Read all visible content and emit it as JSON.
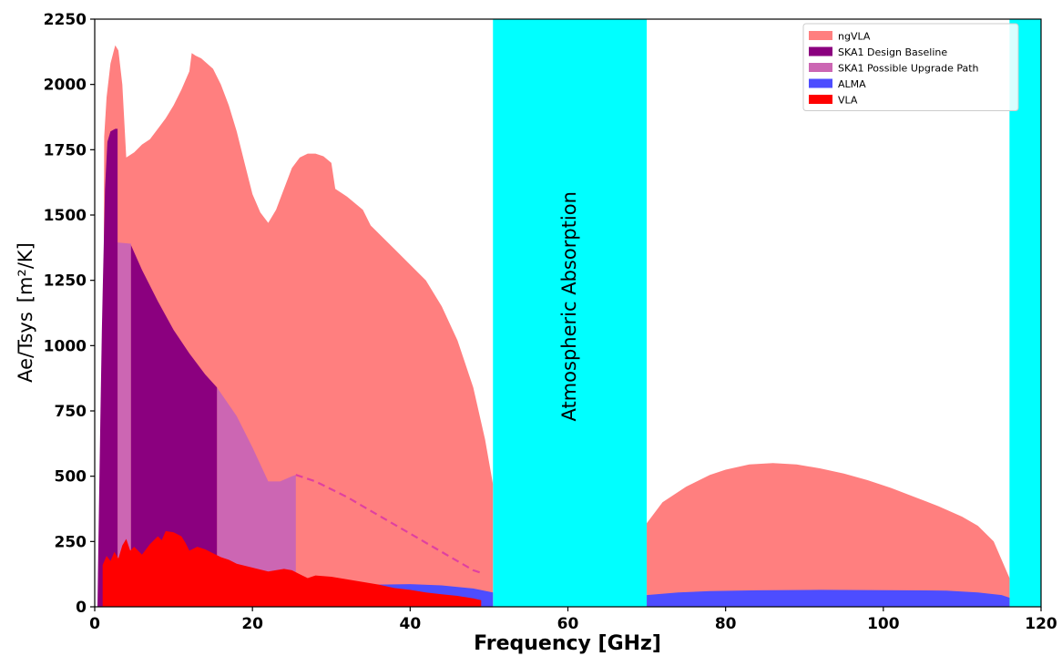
{
  "chart_data": {
    "type": "area",
    "title": "",
    "xlabel": "Frequency [GHz]",
    "ylabel": "Ae/Tsys",
    "ylabel_unit": "[m²/K]",
    "xlim": [
      0,
      120
    ],
    "ylim": [
      0,
      2250
    ],
    "x_ticks": [
      0,
      20,
      40,
      60,
      80,
      100,
      120
    ],
    "y_ticks": [
      0,
      250,
      500,
      750,
      1000,
      1250,
      1500,
      1750,
      2000,
      2250
    ],
    "grid": false,
    "legend_position": "top-right",
    "annotations": [
      {
        "text": "Atmospheric Absorption",
        "x": 61,
        "y": 1150,
        "rotation": -90
      }
    ],
    "bands": [
      {
        "name": "atmospheric-absorption",
        "x0": 50.5,
        "x1": 70,
        "color": "#00ffff"
      },
      {
        "name": "atmospheric-absorption-high",
        "x0": 116,
        "x1": 120,
        "color": "#00ffff"
      }
    ],
    "series": [
      {
        "name": "ngVLA",
        "color": "#ff7f7f",
        "segments": [
          [
            [
              1,
              0
            ],
            [
              1.2,
              1800
            ],
            [
              1.5,
              1950
            ],
            [
              2,
              2080
            ],
            [
              2.6,
              2150
            ],
            [
              3,
              2130
            ],
            [
              3.5,
              2000
            ],
            [
              4,
              1720
            ],
            [
              5,
              1740
            ],
            [
              6,
              1770
            ],
            [
              7,
              1790
            ],
            [
              8,
              1830
            ],
            [
              9,
              1870
            ],
            [
              10,
              1920
            ],
            [
              11,
              1980
            ],
            [
              12,
              2050
            ],
            [
              12.3,
              2120
            ],
            [
              12.8,
              2110
            ],
            [
              13.5,
              2100
            ],
            [
              15,
              2060
            ],
            [
              16,
              2000
            ],
            [
              17,
              1920
            ],
            [
              18,
              1820
            ],
            [
              19,
              1700
            ],
            [
              20,
              1580
            ],
            [
              21,
              1510
            ],
            [
              22,
              1470
            ],
            [
              23,
              1520
            ],
            [
              24,
              1600
            ],
            [
              25,
              1680
            ],
            [
              26,
              1720
            ],
            [
              27,
              1735
            ],
            [
              28,
              1735
            ],
            [
              29,
              1725
            ],
            [
              30,
              1700
            ],
            [
              30.5,
              1600
            ],
            [
              32,
              1570
            ],
            [
              34,
              1520
            ],
            [
              35,
              1460
            ],
            [
              36,
              1430
            ],
            [
              38,
              1370
            ],
            [
              40,
              1310
            ],
            [
              42,
              1250
            ],
            [
              44,
              1150
            ],
            [
              46,
              1020
            ],
            [
              48,
              840
            ],
            [
              49.5,
              640
            ],
            [
              50.5,
              470
            ],
            [
              50.5,
              0
            ]
          ],
          [
            [
              70,
              0
            ],
            [
              70,
              320
            ],
            [
              72,
              400
            ],
            [
              75,
              460
            ],
            [
              78,
              505
            ],
            [
              80,
              525
            ],
            [
              83,
              545
            ],
            [
              86,
              550
            ],
            [
              89,
              545
            ],
            [
              92,
              530
            ],
            [
              95,
              510
            ],
            [
              98,
              485
            ],
            [
              101,
              455
            ],
            [
              104,
              420
            ],
            [
              107,
              385
            ],
            [
              110,
              345
            ],
            [
              112,
              310
            ],
            [
              114,
              250
            ],
            [
              115,
              180
            ],
            [
              116,
              110
            ],
            [
              116,
              0
            ]
          ]
        ]
      },
      {
        "name": "SKA1 Possible Upgrade Path",
        "color": "#cc66b3",
        "segments": [
          [
            [
              2.9,
              0
            ],
            [
              2.9,
              1395
            ],
            [
              4.6,
              1390
            ],
            [
              4.6,
              0
            ]
          ],
          [
            [
              15.5,
              0
            ],
            [
              15.5,
              840
            ],
            [
              18,
              730
            ],
            [
              20,
              610
            ],
            [
              22,
              480
            ],
            [
              23.5,
              480
            ],
            [
              25,
              500
            ],
            [
              25.5,
              505
            ],
            [
              25.5,
              0
            ]
          ]
        ]
      },
      {
        "name": "SKA1 Design Baseline",
        "color": "#8b007f",
        "segments": [
          [
            [
              0.35,
              0
            ],
            [
              0.5,
              300
            ],
            [
              0.7,
              700
            ],
            [
              0.9,
              1050
            ],
            [
              1.0,
              1200
            ],
            [
              1.3,
              1600
            ],
            [
              1.6,
              1780
            ],
            [
              2,
              1820
            ],
            [
              2.6,
              1830
            ],
            [
              2.9,
              1830
            ],
            [
              2.9,
              0
            ]
          ],
          [
            [
              4.6,
              0
            ],
            [
              4.6,
              1385
            ],
            [
              6,
              1290
            ],
            [
              8,
              1170
            ],
            [
              10,
              1060
            ],
            [
              12,
              970
            ],
            [
              14,
              890
            ],
            [
              15.5,
              840
            ],
            [
              15.5,
              0
            ]
          ]
        ]
      },
      {
        "name": "ALMA",
        "color": "#4d4dff",
        "segments": [
          [
            [
              28,
              0
            ],
            [
              28,
              60
            ],
            [
              32,
              75
            ],
            [
              36,
              85
            ],
            [
              40,
              87
            ],
            [
              44,
              82
            ],
            [
              48,
              70
            ],
            [
              50.5,
              55
            ],
            [
              50.5,
              0
            ]
          ],
          [
            [
              70,
              0
            ],
            [
              70,
              45
            ],
            [
              74,
              55
            ],
            [
              78,
              60
            ],
            [
              84,
              63
            ],
            [
              92,
              65
            ],
            [
              100,
              64
            ],
            [
              108,
              62
            ],
            [
              112,
              55
            ],
            [
              115,
              45
            ],
            [
              116,
              35
            ],
            [
              116,
              0
            ]
          ]
        ]
      },
      {
        "name": "VLA",
        "color": "#ff0000",
        "segments": [
          [
            [
              1,
              0
            ],
            [
              1,
              160
            ],
            [
              1.5,
              195
            ],
            [
              2,
              175
            ],
            [
              2.5,
              210
            ],
            [
              3,
              185
            ],
            [
              3.5,
              235
            ],
            [
              4,
              260
            ],
            [
              4.5,
              215
            ],
            [
              5,
              230
            ],
            [
              6,
              200
            ],
            [
              7,
              240
            ],
            [
              8,
              270
            ],
            [
              8.5,
              255
            ],
            [
              9,
              290
            ],
            [
              10,
              285
            ],
            [
              11,
              270
            ],
            [
              11.5,
              245
            ],
            [
              12,
              215
            ],
            [
              13,
              230
            ],
            [
              14,
              220
            ],
            [
              15,
              205
            ],
            [
              16,
              190
            ],
            [
              17,
              180
            ],
            [
              18,
              165
            ],
            [
              20,
              150
            ],
            [
              22,
              135
            ],
            [
              24,
              145
            ],
            [
              25,
              140
            ],
            [
              26,
              125
            ],
            [
              27,
              110
            ],
            [
              28,
              120
            ],
            [
              30,
              115
            ],
            [
              32,
              105
            ],
            [
              34,
              95
            ],
            [
              36,
              85
            ],
            [
              38,
              72
            ],
            [
              40,
              65
            ],
            [
              42,
              55
            ],
            [
              44,
              48
            ],
            [
              46,
              42
            ],
            [
              48,
              32
            ],
            [
              49,
              25
            ],
            [
              49,
              0
            ]
          ]
        ]
      }
    ],
    "dashed_lines": [
      {
        "name": "SKA1 Possible Upgrade Path extrapolation",
        "color": "#e040a0",
        "points": [
          [
            25.5,
            505
          ],
          [
            28,
            480
          ],
          [
            32,
            420
          ],
          [
            36,
            350
          ],
          [
            40,
            280
          ],
          [
            44,
            210
          ],
          [
            48,
            140
          ],
          [
            49,
            130
          ]
        ]
      }
    ],
    "legend": [
      {
        "label": "ngVLA",
        "color": "#ff7f7f"
      },
      {
        "label": "SKA1 Design Baseline",
        "color": "#8b007f"
      },
      {
        "label": "SKA1 Possible Upgrade Path",
        "color": "#cc66b3"
      },
      {
        "label": "ALMA",
        "color": "#4d4dff"
      },
      {
        "label": "VLA",
        "color": "#ff0000"
      }
    ]
  }
}
